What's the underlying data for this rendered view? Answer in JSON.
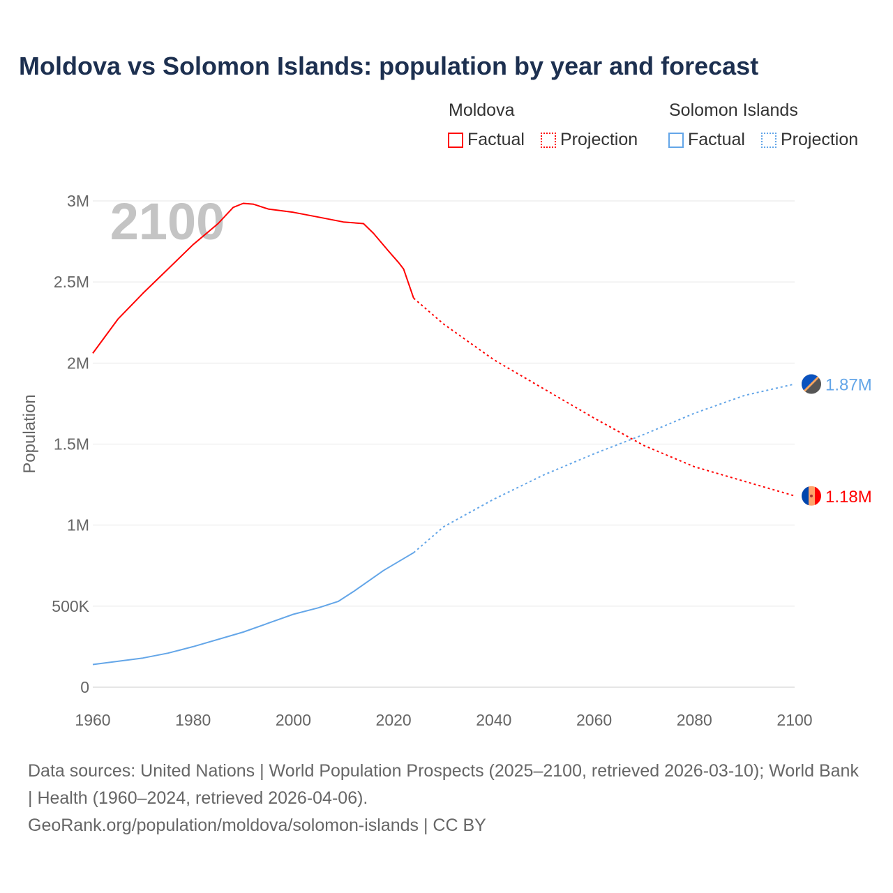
{
  "title": "Moldova vs Solomon Islands: population by year and forecast",
  "legend": {
    "groups": [
      {
        "name": "Moldova",
        "factual": "Factual",
        "projection": "Projection",
        "color": "#ff0000"
      },
      {
        "name": "Solomon Islands",
        "factual": "Factual",
        "projection": "Projection",
        "color": "#64a6e8"
      }
    ]
  },
  "year_watermark": "2100",
  "footer": {
    "line1": "Data sources: United Nations | World Population Prospects (2025–2100, retrieved 2026-03-10); World Bank | Health (1960–2024, retrieved 2026-04-06).",
    "line2": "GeoRank.org/population/moldova/solomon-islands | CC BY"
  },
  "chart_data": {
    "type": "line",
    "title": "Moldova vs Solomon Islands: population by year and forecast",
    "xlabel": "",
    "ylabel": "Population",
    "xlim": [
      1960,
      2100
    ],
    "ylim": [
      0,
      3000000
    ],
    "x_ticks": [
      "1960",
      "1980",
      "2000",
      "2020",
      "2040",
      "2060",
      "2080",
      "2100"
    ],
    "y_ticks": [
      {
        "v": 0,
        "label": "0"
      },
      {
        "v": 500000,
        "label": "500K"
      },
      {
        "v": 1000000,
        "label": "1M"
      },
      {
        "v": 1500000,
        "label": "1.5M"
      },
      {
        "v": 2000000,
        "label": "2M"
      },
      {
        "v": 2500000,
        "label": "2.5M"
      },
      {
        "v": 3000000,
        "label": "3M"
      }
    ],
    "grid": true,
    "legend_position": "top-right",
    "series": [
      {
        "name": "Moldova",
        "color": "#ff0000",
        "end_label": "1.18M",
        "factual": [
          [
            1960,
            2.06
          ],
          [
            1965,
            2.27
          ],
          [
            1970,
            2.43
          ],
          [
            1975,
            2.58
          ],
          [
            1980,
            2.73
          ],
          [
            1985,
            2.86
          ],
          [
            1988,
            2.96
          ],
          [
            1990,
            2.985
          ],
          [
            1992,
            2.98
          ],
          [
            1995,
            2.95
          ],
          [
            2000,
            2.93
          ],
          [
            2005,
            2.9
          ],
          [
            2010,
            2.87
          ],
          [
            2014,
            2.86
          ],
          [
            2016,
            2.8
          ],
          [
            2019,
            2.69
          ],
          [
            2021,
            2.62
          ],
          [
            2022,
            2.58
          ],
          [
            2024,
            2.4
          ]
        ],
        "projection": [
          [
            2024,
            2.4
          ],
          [
            2030,
            2.24
          ],
          [
            2040,
            2.02
          ],
          [
            2050,
            1.84
          ],
          [
            2060,
            1.66
          ],
          [
            2070,
            1.49
          ],
          [
            2080,
            1.36
          ],
          [
            2090,
            1.27
          ],
          [
            2100,
            1.18
          ]
        ]
      },
      {
        "name": "Solomon Islands",
        "color": "#64a6e8",
        "end_label": "1.87M",
        "factual": [
          [
            1960,
            0.14
          ],
          [
            1970,
            0.18
          ],
          [
            1975,
            0.21
          ],
          [
            1980,
            0.25
          ],
          [
            1990,
            0.34
          ],
          [
            2000,
            0.45
          ],
          [
            2005,
            0.49
          ],
          [
            2009,
            0.53
          ],
          [
            2012,
            0.59
          ],
          [
            2018,
            0.72
          ],
          [
            2024,
            0.83
          ]
        ],
        "projection": [
          [
            2024,
            0.83
          ],
          [
            2030,
            0.99
          ],
          [
            2040,
            1.16
          ],
          [
            2050,
            1.31
          ],
          [
            2060,
            1.44
          ],
          [
            2070,
            1.56
          ],
          [
            2080,
            1.69
          ],
          [
            2090,
            1.8
          ],
          [
            2100,
            1.87
          ]
        ]
      }
    ],
    "units": "millions"
  }
}
